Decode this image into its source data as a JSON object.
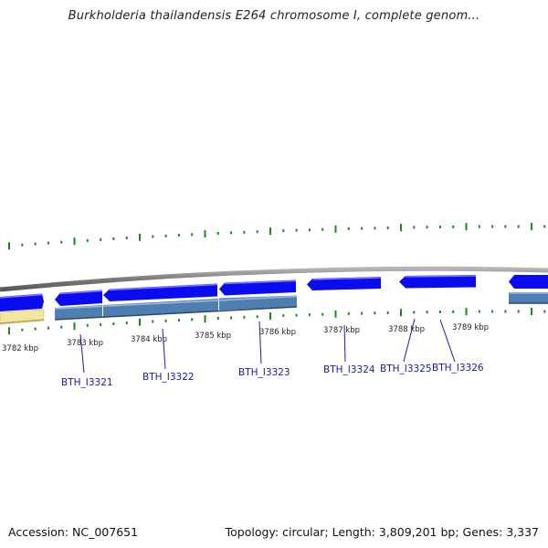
{
  "title": "Burkholderia thailandensis E264 chromosome I, complete genom...",
  "footer": {
    "accession": "Accession: NC_007651",
    "summary": "Topology: circular; Length: 3,809,201 bp; Genes: 3,337"
  },
  "colors": {
    "gene_arrow": "#0b0bf0",
    "gene_arrow_light": "#6a6aff",
    "cds_bar": "#4f7fb0",
    "cds_bar_highlight": "#8fb3d6",
    "pseudo_bar": "#f3e6a0",
    "backbone": "#8a8a8a",
    "tick": "#1a8a1a",
    "label": "#1a1aaa"
  },
  "scale_ticks": [
    "3782 kbp",
    "3783 kbp",
    "3784 kbp",
    "3785 kbp",
    "3786 kbp",
    "3787 kbp",
    "3788 kbp",
    "3789 kbp"
  ],
  "genes": [
    "BTH_I3321",
    "BTH_I3322",
    "BTH_I3323",
    "BTH_I3324",
    "BTH_I3325",
    "BTH_I3326"
  ]
}
